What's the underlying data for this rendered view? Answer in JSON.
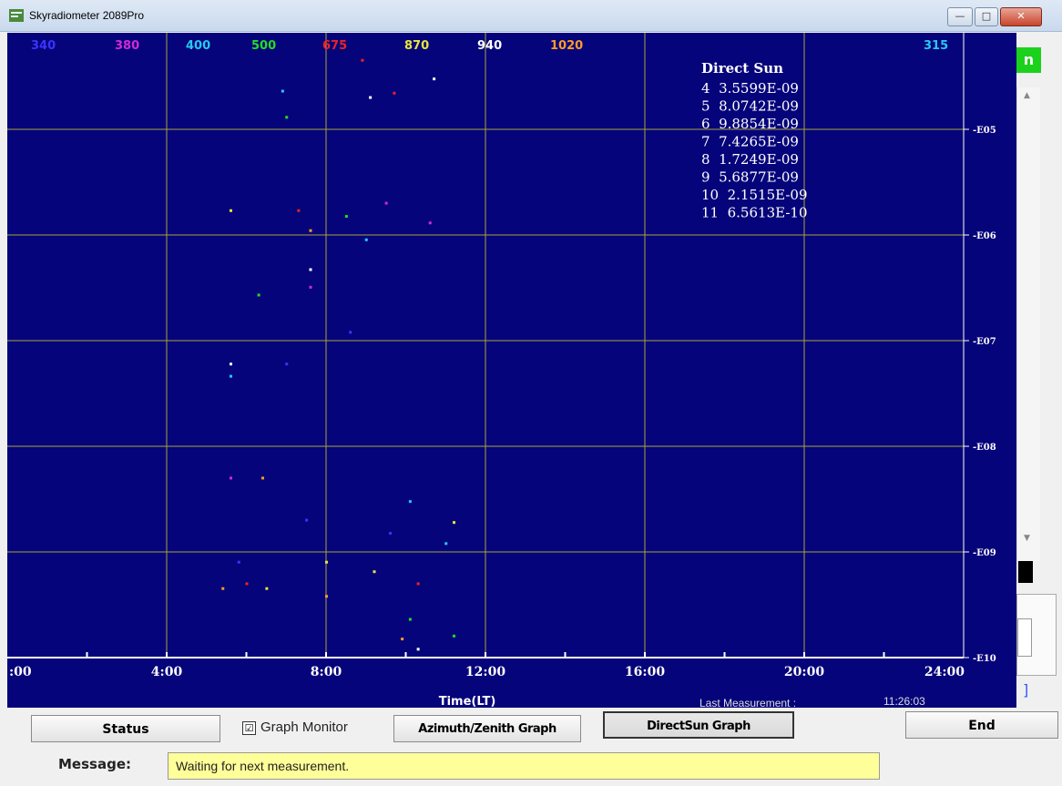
{
  "window": {
    "title": "Skyradiometer 2089Pro",
    "controls": {
      "minimize": "—",
      "maximize": "□",
      "close": "✕"
    }
  },
  "colors": {
    "plot_bg": "#06047a",
    "grid": "#a5a43a",
    "axis": "#ffffff",
    "accent_green": "#1bd11b",
    "message_bg": "#ffff99"
  },
  "wavelength_labels": [
    {
      "text": "340",
      "color": "#3a34ff"
    },
    {
      "text": "380",
      "color": "#d02ad6"
    },
    {
      "text": "400",
      "color": "#27c8f0"
    },
    {
      "text": "500",
      "color": "#22dd22"
    },
    {
      "text": "675",
      "color": "#ee2222"
    },
    {
      "text": "870",
      "color": "#e6e63a"
    },
    {
      "text": "940",
      "color": "#ffffff"
    },
    {
      "text": "1020",
      "color": "#ff9a2a"
    },
    {
      "text": "315",
      "color": "#27c8f0"
    }
  ],
  "direct_sun": {
    "title": "Direct Sun",
    "rows": [
      "4  3.5599E-09",
      "5  8.0742E-09",
      "6  9.8854E-09",
      "7  7.4265E-09",
      "8  1.7249E-09",
      "9  5.6877E-09",
      "10  2.1515E-09",
      "11  6.5613E-10"
    ]
  },
  "side_panel": {
    "green_tab": "n",
    "bracket": "]"
  },
  "chart_data": {
    "type": "scatter",
    "xlabel": "Time(LT)",
    "ylabel": "",
    "x_ticks": [
      ":00",
      "4:00",
      "8:00",
      "12:00",
      "16:00",
      "20:00",
      "24:00"
    ],
    "xlim": [
      0,
      24
    ],
    "y_scale": "log",
    "y_ticks": [
      "-E05",
      "-E06",
      "-E07",
      "-E08",
      "-E09",
      "-E10"
    ],
    "ylim": [
      1e-10,
      3e-05
    ],
    "grid": true,
    "series": [
      {
        "name": "340",
        "color": "#3a34ff",
        "x": [
          5.8,
          7.0,
          7.5,
          8.6,
          9.6
        ],
        "y": [
          8e-10,
          6e-08,
          2e-09,
          1.2e-07,
          1.5e-09
        ]
      },
      {
        "name": "380",
        "color": "#d02ad6",
        "x": [
          5.6,
          7.6,
          9.5,
          10.6
        ],
        "y": [
          5e-09,
          3.2e-07,
          2e-06,
          1.3e-06
        ]
      },
      {
        "name": "400",
        "color": "#27c8f0",
        "x": [
          5.6,
          6.9,
          9.0,
          10.1,
          11.0
        ],
        "y": [
          4.6e-08,
          2.3e-05,
          9e-07,
          3e-09,
          1.2e-09
        ]
      },
      {
        "name": "500",
        "color": "#22dd22",
        "x": [
          6.3,
          7.0,
          8.5,
          10.1,
          11.2
        ],
        "y": [
          2.7e-07,
          1.3e-05,
          1.5e-06,
          2.3e-10,
          1.6e-10
        ]
      },
      {
        "name": "675",
        "color": "#ee2222",
        "x": [
          6.0,
          7.3,
          8.9,
          9.7,
          10.3
        ],
        "y": [
          5e-10,
          1.7e-06,
          4.5e-05,
          2.2e-05,
          5e-10
        ]
      },
      {
        "name": "870",
        "color": "#e6e63a",
        "x": [
          5.6,
          6.5,
          8.0,
          9.2,
          11.2
        ],
        "y": [
          1.7e-06,
          4.5e-10,
          8e-10,
          6.5e-10,
          1.9e-09
        ]
      },
      {
        "name": "940",
        "color": "#ffffff",
        "x": [
          5.6,
          7.6,
          10.3,
          9.1,
          10.7
        ],
        "y": [
          6e-08,
          4.7e-07,
          1.2e-10,
          2e-05,
          3e-05
        ]
      },
      {
        "name": "1020",
        "color": "#ff9a2a",
        "x": [
          5.4,
          6.4,
          7.6,
          8.0,
          9.9
        ],
        "y": [
          4.5e-10,
          5e-09,
          1.1e-06,
          3.8e-10,
          1.5e-10
        ]
      }
    ]
  },
  "plot_footer": {
    "xlabel": "Time(LT)",
    "last_measurement_label": "Last Measurement :",
    "last_measurement_time": "11:26:03"
  },
  "toolbar": {
    "status": "Status",
    "graph_monitor": "Graph Monitor",
    "graph_monitor_checked": "☑",
    "azimuth_zenith": "Azimuth/Zenith Graph",
    "directsun": "DirectSun Graph",
    "end": "End"
  },
  "message": {
    "label": "Message:",
    "text": "Waiting for next measurement."
  }
}
